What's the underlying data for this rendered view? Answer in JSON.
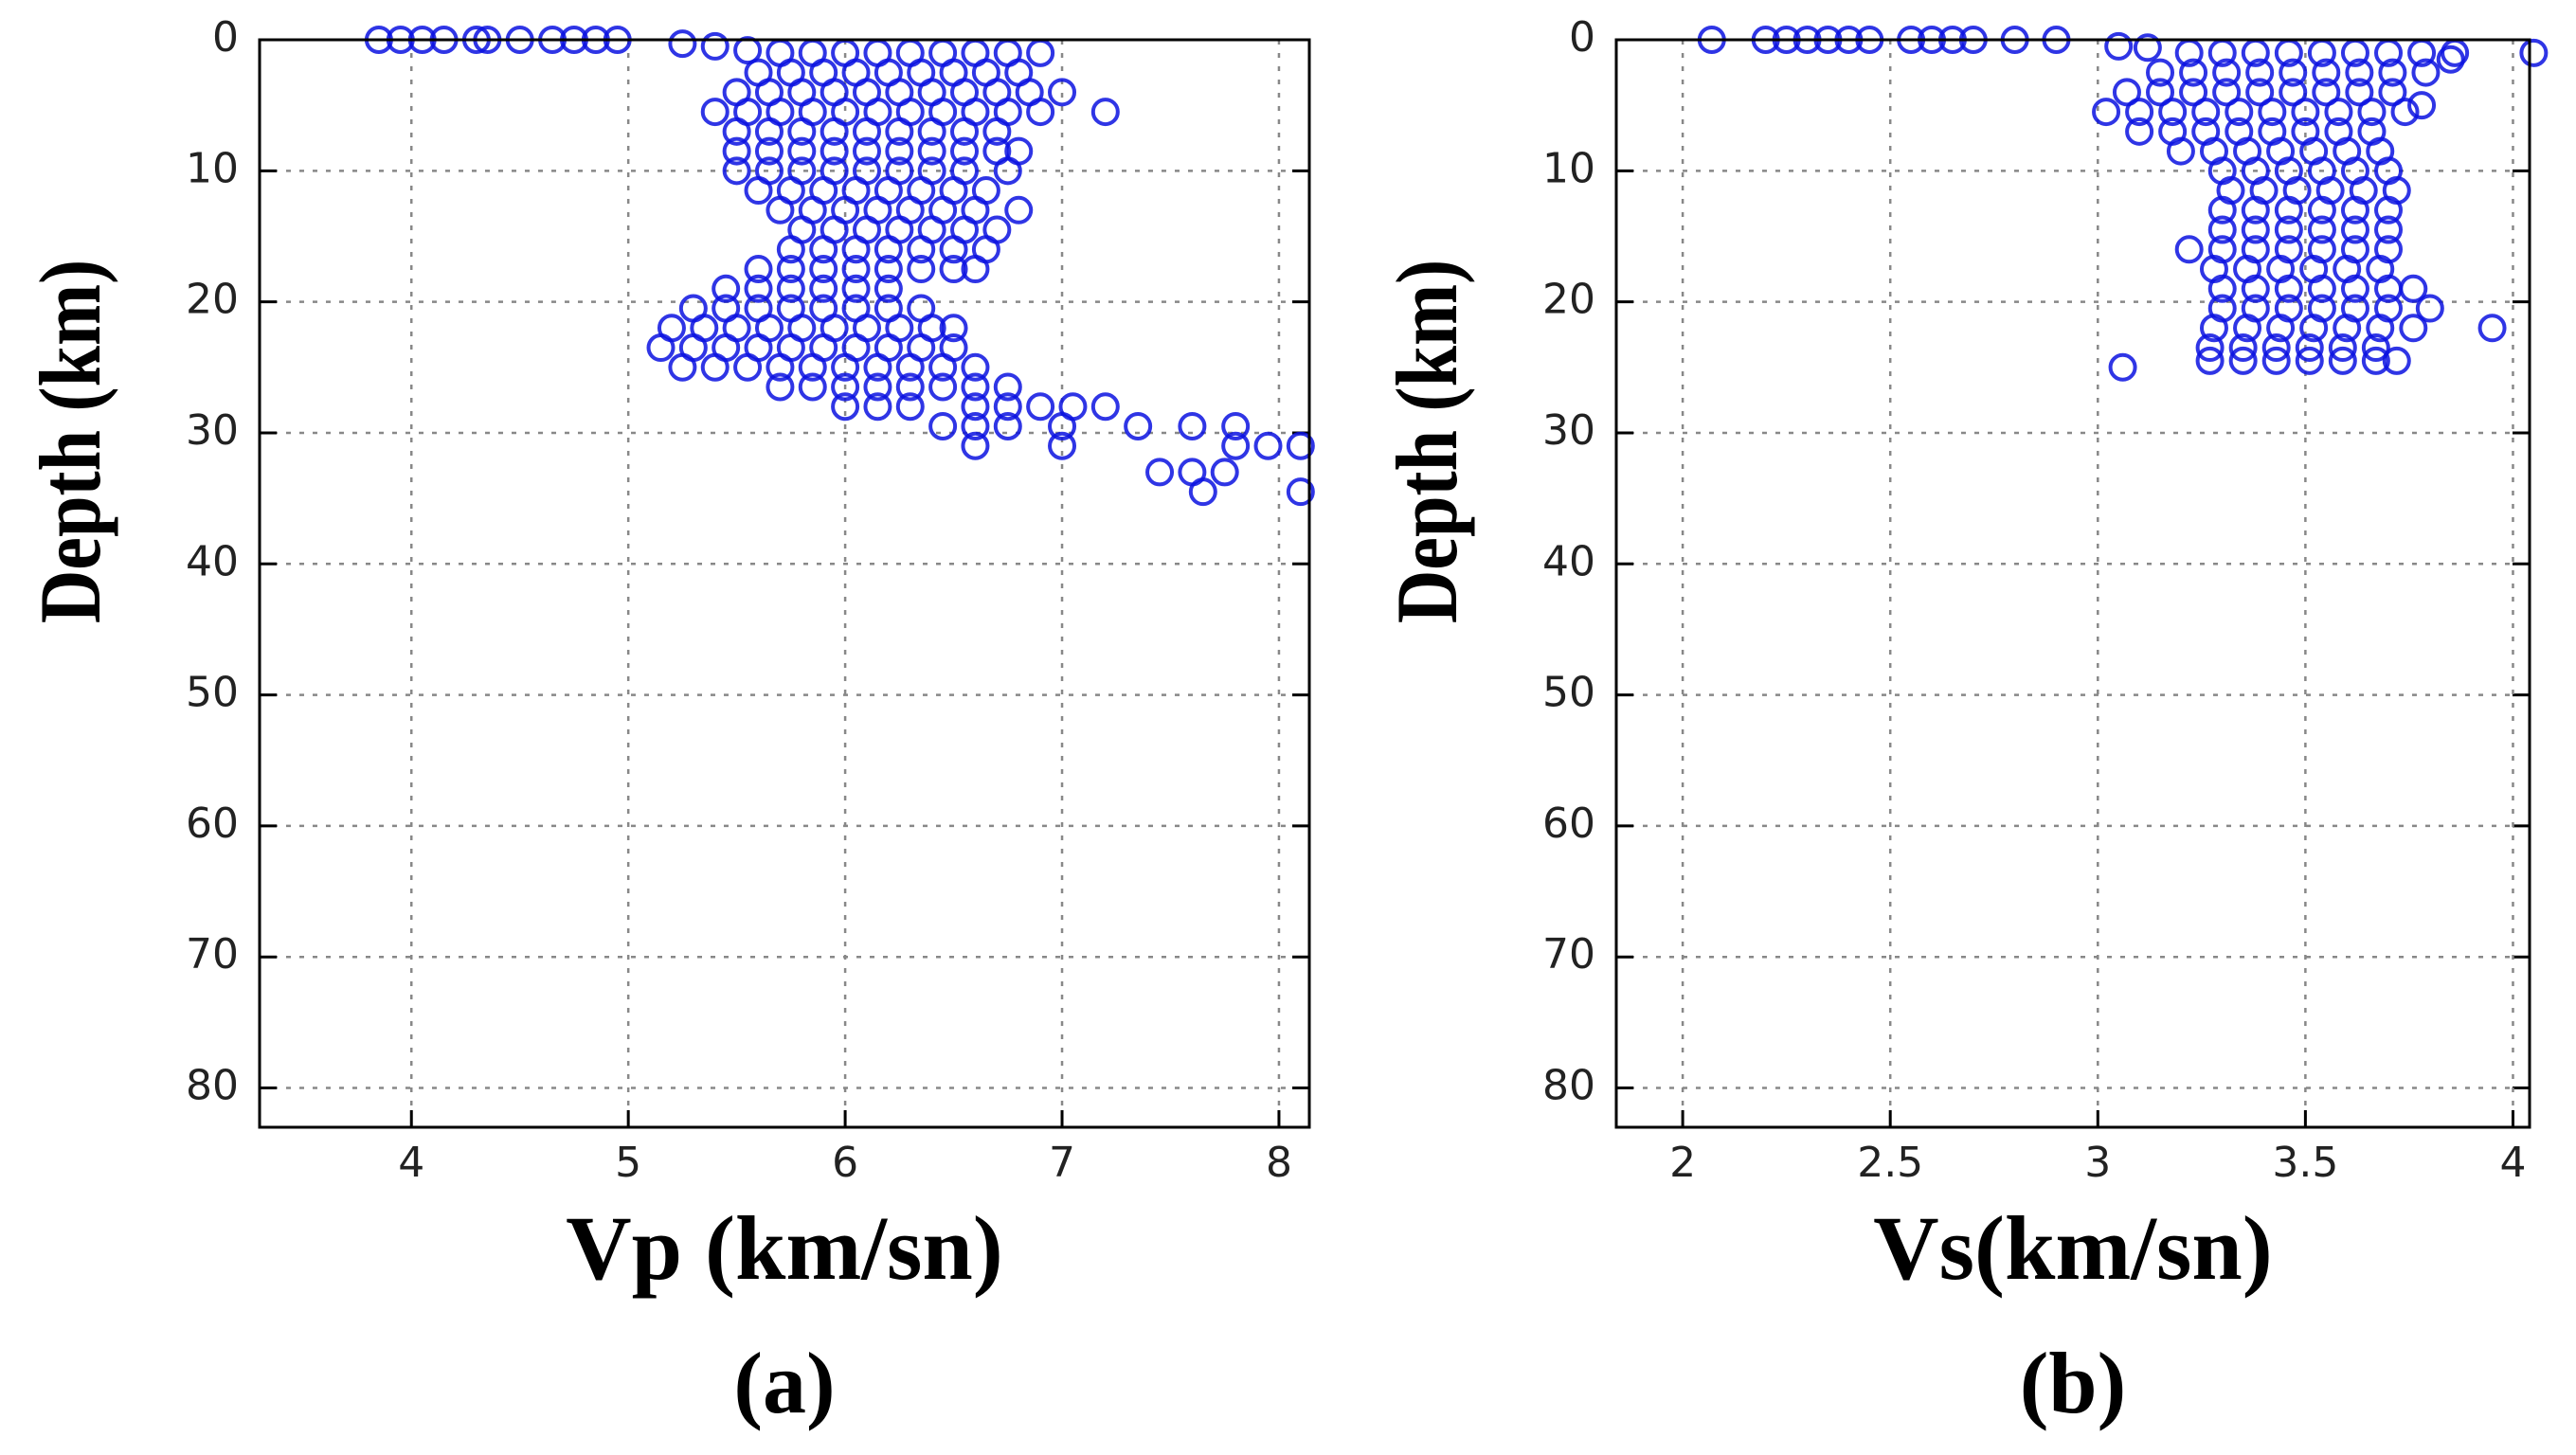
{
  "chart_data": [
    {
      "type": "scatter",
      "x_label": "Vp (km/sn)",
      "y_label": "Depth (km)",
      "caption": "(a)",
      "color": "#0a12e0",
      "grid": true,
      "y_inverted": true,
      "xlim": [
        3.3,
        8.14
      ],
      "ylim": [
        0,
        83
      ],
      "xticks": [
        4,
        5,
        6,
        7,
        8
      ],
      "yticks": [
        0,
        10,
        20,
        30,
        40,
        50,
        60,
        70,
        80
      ],
      "x": [
        3.85,
        3.95,
        4.05,
        4.15,
        4.3,
        4.35,
        4.5,
        4.65,
        4.75,
        4.85,
        4.95,
        5.25,
        5.4,
        5.55,
        5.7,
        5.85,
        6.0,
        6.15,
        6.3,
        6.45,
        6.6,
        6.75,
        6.9,
        5.6,
        5.75,
        5.9,
        6.05,
        6.2,
        6.35,
        6.5,
        6.65,
        6.8,
        5.5,
        5.65,
        5.8,
        5.95,
        6.1,
        6.25,
        6.4,
        6.55,
        6.7,
        6.85,
        7.0,
        5.4,
        5.55,
        5.7,
        5.85,
        6.0,
        6.15,
        6.3,
        6.45,
        6.6,
        6.75,
        6.9,
        7.2,
        5.5,
        5.65,
        5.8,
        5.95,
        6.1,
        6.25,
        6.4,
        6.55,
        6.7,
        5.5,
        5.65,
        5.8,
        5.95,
        6.1,
        6.25,
        6.4,
        6.55,
        6.7,
        6.8,
        5.5,
        5.65,
        5.8,
        5.95,
        6.1,
        6.25,
        6.4,
        6.55,
        6.75,
        5.6,
        5.75,
        5.9,
        6.05,
        6.2,
        6.35,
        6.5,
        6.65,
        5.7,
        5.85,
        6.0,
        6.15,
        6.3,
        6.45,
        6.6,
        6.8,
        5.8,
        5.95,
        6.1,
        6.25,
        6.4,
        6.55,
        6.7,
        5.75,
        5.9,
        6.05,
        6.2,
        6.35,
        6.5,
        6.65,
        5.6,
        5.75,
        5.9,
        6.05,
        6.2,
        6.35,
        6.5,
        6.6,
        5.45,
        5.6,
        5.75,
        5.9,
        6.05,
        6.2,
        5.3,
        5.45,
        5.6,
        5.75,
        5.9,
        6.05,
        6.2,
        6.35,
        5.2,
        5.35,
        5.5,
        5.65,
        5.8,
        5.95,
        6.1,
        6.25,
        6.4,
        6.5,
        5.15,
        5.3,
        5.45,
        5.6,
        5.75,
        5.9,
        6.05,
        6.2,
        6.35,
        6.5,
        5.25,
        5.4,
        5.55,
        5.7,
        5.85,
        6.0,
        6.15,
        6.3,
        6.45,
        6.6,
        5.7,
        5.85,
        6.0,
        6.15,
        6.3,
        6.45,
        6.6,
        6.75,
        6.0,
        6.15,
        6.3,
        6.6,
        6.75,
        6.9,
        7.05,
        7.2,
        6.45,
        6.6,
        6.75,
        7.0,
        7.35,
        7.6,
        7.8,
        6.6,
        7.0,
        7.8,
        7.95,
        8.1,
        7.45,
        7.6,
        7.75,
        7.65,
        8.1
      ],
      "y": [
        0,
        0,
        0,
        0,
        0,
        0,
        0,
        0,
        0,
        0,
        0,
        0.3,
        0.5,
        0.8,
        1,
        1,
        1,
        1,
        1,
        1,
        1,
        1,
        1,
        2.5,
        2.5,
        2.5,
        2.5,
        2.5,
        2.5,
        2.5,
        2.5,
        2.5,
        4,
        4,
        4,
        4,
        4,
        4,
        4,
        4,
        4,
        4,
        4,
        5.5,
        5.5,
        5.5,
        5.5,
        5.5,
        5.5,
        5.5,
        5.5,
        5.5,
        5.5,
        5.5,
        5.5,
        7,
        7,
        7,
        7,
        7,
        7,
        7,
        7,
        7,
        8.5,
        8.5,
        8.5,
        8.5,
        8.5,
        8.5,
        8.5,
        8.5,
        8.5,
        8.5,
        10,
        10,
        10,
        10,
        10,
        10,
        10,
        10,
        10,
        11.5,
        11.5,
        11.5,
        11.5,
        11.5,
        11.5,
        11.5,
        11.5,
        13,
        13,
        13,
        13,
        13,
        13,
        13,
        13,
        14.5,
        14.5,
        14.5,
        14.5,
        14.5,
        14.5,
        14.5,
        16,
        16,
        16,
        16,
        16,
        16,
        16,
        17.5,
        17.5,
        17.5,
        17.5,
        17.5,
        17.5,
        17.5,
        17.5,
        19,
        19,
        19,
        19,
        19,
        19,
        20.5,
        20.5,
        20.5,
        20.5,
        20.5,
        20.5,
        20.5,
        20.5,
        22,
        22,
        22,
        22,
        22,
        22,
        22,
        22,
        22,
        22,
        23.5,
        23.5,
        23.5,
        23.5,
        23.5,
        23.5,
        23.5,
        23.5,
        23.5,
        23.5,
        25,
        25,
        25,
        25,
        25,
        25,
        25,
        25,
        25,
        25,
        26.5,
        26.5,
        26.5,
        26.5,
        26.5,
        26.5,
        26.5,
        26.5,
        28,
        28,
        28,
        28,
        28,
        28,
        28,
        28,
        29.5,
        29.5,
        29.5,
        29.5,
        29.5,
        29.5,
        29.5,
        31,
        31,
        31,
        31,
        31,
        33,
        33,
        33,
        34.5,
        34.5
      ]
    },
    {
      "type": "scatter",
      "x_label": "Vs(km/sn)",
      "y_label": "Depth (km)",
      "caption": "(b)",
      "color": "#0a12e0",
      "grid": true,
      "y_inverted": true,
      "xlim": [
        1.84,
        4.04
      ],
      "ylim": [
        0,
        83
      ],
      "xticks": [
        2,
        2.5,
        3,
        3.5,
        4
      ],
      "yticks": [
        0,
        10,
        20,
        30,
        40,
        50,
        60,
        70,
        80
      ],
      "x": [
        2.07,
        2.2,
        2.25,
        2.3,
        2.35,
        2.4,
        2.45,
        2.55,
        2.6,
        2.65,
        2.7,
        2.8,
        2.9,
        3.05,
        3.12,
        4.05,
        3.06,
        3.95,
        3.85,
        3.78,
        3.22,
        3.3,
        3.38,
        3.46,
        3.54,
        3.62,
        3.7,
        3.78,
        3.86,
        3.15,
        3.23,
        3.31,
        3.39,
        3.47,
        3.55,
        3.63,
        3.71,
        3.79,
        3.07,
        3.15,
        3.23,
        3.31,
        3.39,
        3.47,
        3.55,
        3.63,
        3.71,
        3.02,
        3.1,
        3.18,
        3.26,
        3.34,
        3.42,
        3.5,
        3.58,
        3.66,
        3.74,
        3.1,
        3.18,
        3.26,
        3.34,
        3.42,
        3.5,
        3.58,
        3.66,
        3.2,
        3.28,
        3.36,
        3.44,
        3.52,
        3.6,
        3.68,
        3.3,
        3.38,
        3.46,
        3.54,
        3.62,
        3.7,
        3.32,
        3.4,
        3.48,
        3.56,
        3.64,
        3.72,
        3.3,
        3.38,
        3.46,
        3.54,
        3.62,
        3.7,
        3.3,
        3.38,
        3.46,
        3.54,
        3.62,
        3.7,
        3.22,
        3.3,
        3.38,
        3.46,
        3.54,
        3.62,
        3.7,
        3.28,
        3.36,
        3.44,
        3.52,
        3.6,
        3.68,
        3.3,
        3.38,
        3.46,
        3.54,
        3.62,
        3.7,
        3.76,
        3.3,
        3.38,
        3.46,
        3.54,
        3.62,
        3.7,
        3.8,
        3.28,
        3.36,
        3.44,
        3.52,
        3.6,
        3.68,
        3.76,
        3.27,
        3.35,
        3.43,
        3.51,
        3.59,
        3.67,
        3.27,
        3.35,
        3.43,
        3.51,
        3.59,
        3.67,
        3.72
      ],
      "y": [
        0,
        0,
        0,
        0,
        0,
        0,
        0,
        0,
        0,
        0,
        0,
        0,
        0,
        0.5,
        0.6,
        1,
        25,
        22,
        1.5,
        5,
        1,
        1,
        1,
        1,
        1,
        1,
        1,
        1,
        1,
        2.5,
        2.5,
        2.5,
        2.5,
        2.5,
        2.5,
        2.5,
        2.5,
        2.5,
        4,
        4,
        4,
        4,
        4,
        4,
        4,
        4,
        4,
        5.5,
        5.5,
        5.5,
        5.5,
        5.5,
        5.5,
        5.5,
        5.5,
        5.5,
        5.5,
        7,
        7,
        7,
        7,
        7,
        7,
        7,
        7,
        8.5,
        8.5,
        8.5,
        8.5,
        8.5,
        8.5,
        8.5,
        10,
        10,
        10,
        10,
        10,
        10,
        11.5,
        11.5,
        11.5,
        11.5,
        11.5,
        11.5,
        13,
        13,
        13,
        13,
        13,
        13,
        14.5,
        14.5,
        14.5,
        14.5,
        14.5,
        14.5,
        16,
        16,
        16,
        16,
        16,
        16,
        16,
        17.5,
        17.5,
        17.5,
        17.5,
        17.5,
        17.5,
        19,
        19,
        19,
        19,
        19,
        19,
        19,
        20.5,
        20.5,
        20.5,
        20.5,
        20.5,
        20.5,
        20.5,
        22,
        22,
        22,
        22,
        22,
        22,
        22,
        23.5,
        23.5,
        23.5,
        23.5,
        23.5,
        23.5,
        24.5,
        24.5,
        24.5,
        24.5,
        24.5,
        24.5,
        24.5
      ]
    }
  ]
}
